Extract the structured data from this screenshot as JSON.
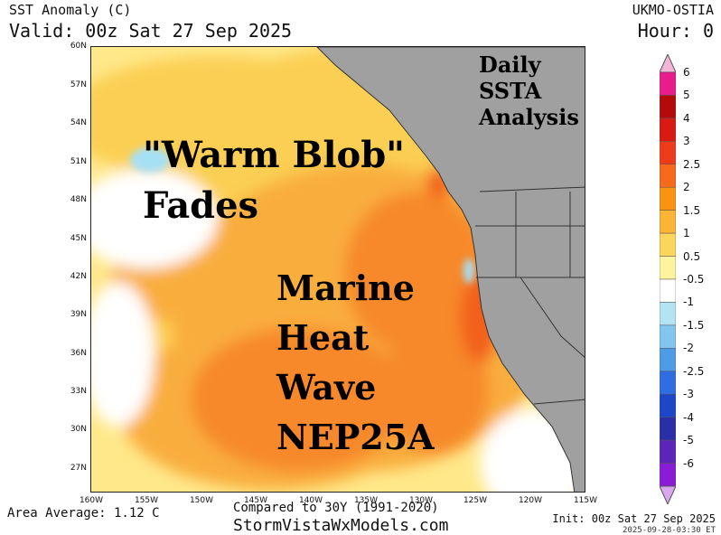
{
  "header": {
    "title": "SST Anomaly (C)",
    "valid": "Valid: 00z Sat 27 Sep 2025",
    "source": "UKMO-OSTIA",
    "hour": "Hour: 0"
  },
  "map": {
    "lat_labels": [
      "60N",
      "57N",
      "54N",
      "51N",
      "48N",
      "45N",
      "42N",
      "39N",
      "36N",
      "33N",
      "30N",
      "27N"
    ],
    "lon_labels": [
      "160W",
      "155W",
      "150W",
      "145W",
      "140W",
      "135W",
      "130W",
      "125W",
      "120W",
      "115W"
    ],
    "overlays": {
      "blob_line1": "\"Warm Blob\"",
      "blob_line2": "Fades",
      "mhw_line1": "Marine",
      "mhw_line2": "Heat",
      "mhw_line3": "Wave",
      "mhw_line4": "NEP25A",
      "daily_line1": "Daily",
      "daily_line2": "SSTA",
      "daily_line3": "Analysis"
    },
    "colors": {
      "land": "#a0a0a0",
      "ocean_base": "#ffe88a",
      "warm_1": "#fbcf52",
      "warm_2": "#f9ad3c",
      "warm_3": "#f7892a",
      "warm_4": "#f2601e",
      "cool_1": "#ffffff",
      "cool_2": "#a6e0f5"
    }
  },
  "colorbar": {
    "labels": [
      "6",
      "5",
      "4",
      "3",
      "2.5",
      "2",
      "1.5",
      "1",
      "0.5",
      "-0.5",
      "-1",
      "-1.5",
      "-2",
      "-2.5",
      "-3",
      "-4",
      "-5",
      "-6"
    ],
    "colors": [
      "#e81c8c",
      "#b30a0a",
      "#d91a12",
      "#ee3b1a",
      "#f76a1e",
      "#f99413",
      "#fbb435",
      "#fcd65a",
      "#fff39e",
      "#ffffff",
      "#b4e4f4",
      "#82c6ee",
      "#4e9ce5",
      "#2f6ee0",
      "#1c47c8",
      "#2a2fa8",
      "#5a25b8",
      "#8a1cd8"
    ],
    "top_cap": "#f3b6d8",
    "bottom_cap": "#d8a8ee"
  },
  "footer": {
    "area_average": "Area Average: 1.12 C",
    "compared": "Compared to 30Y (1991-2020)",
    "site": "StormVistaWxModels.com",
    "init": "Init: 00z Sat 27 Sep 2025",
    "stamp": "2025-09-28-03:30 ET"
  }
}
